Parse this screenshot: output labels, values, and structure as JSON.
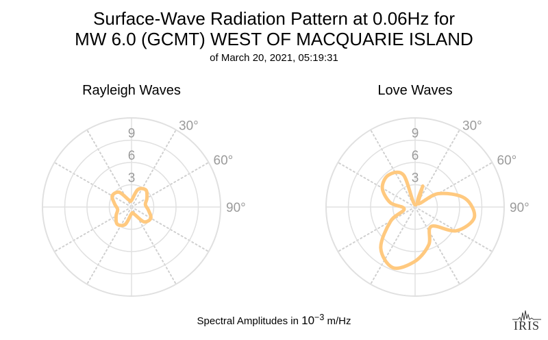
{
  "title_line1": "Surface-Wave Radiation Pattern at 0.06Hz for",
  "title_line2": "MW 6.0 (GCMT) WEST OF MACQUARIE ISLAND",
  "subtitle": "of March 20, 2021, 05:19:31",
  "footer": {
    "prefix": "Spectral Amplitudes in ",
    "unit_base": "10",
    "unit_exp": "−3",
    "unit_suffix": " m/Hz"
  },
  "logo_text": "IRIS",
  "colors": {
    "pattern": "#ffc97f",
    "grid": "#e0e0e0",
    "grid_dotted": "#d0d0d0",
    "tick_label": "#9a9a9a"
  },
  "chart_data": [
    {
      "type": "polar-line",
      "title": "Rayleigh Waves",
      "radial_ticks": [
        3,
        6,
        9
      ],
      "angle_ticks": [
        "30°",
        "60°",
        "90°"
      ],
      "rmax": 12,
      "series": [
        {
          "azimuth_deg": [
            0,
            20,
            40,
            60,
            80,
            100,
            120,
            140,
            160,
            180,
            200,
            220,
            240,
            260,
            280,
            300,
            320,
            340
          ],
          "amplitude": [
            0.9,
            2.5,
            3.0,
            2.4,
            1.9,
            2.3,
            3.0,
            2.6,
            1.0,
            0.9,
            2.5,
            3.0,
            2.4,
            1.9,
            2.3,
            3.0,
            2.6,
            1.0
          ]
        }
      ]
    },
    {
      "type": "polar-line",
      "title": "Love Waves",
      "radial_ticks": [
        3,
        6,
        9
      ],
      "angle_ticks": [
        "30°",
        "60°",
        "90°"
      ],
      "rmax": 12,
      "series": [
        {
          "azimuth_deg": [
            0,
            20,
            40,
            60,
            80,
            100,
            120,
            140,
            160,
            180,
            200,
            220,
            240,
            260,
            280,
            300,
            320,
            340
          ],
          "amplitude": [
            0.3,
            3.0,
            0.6,
            3.6,
            6.8,
            8.1,
            6.4,
            3.4,
            5.4,
            7.3,
            8.7,
            7.2,
            3.8,
            1.5,
            3.4,
            5.1,
            5.6,
            4.6
          ]
        }
      ]
    }
  ]
}
